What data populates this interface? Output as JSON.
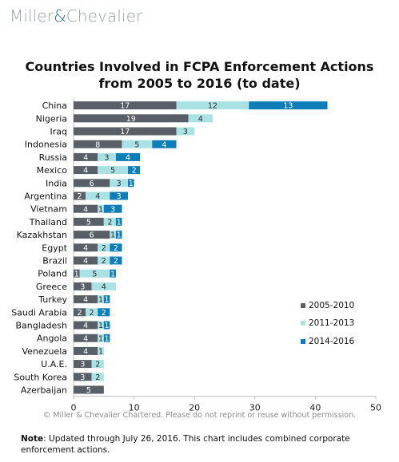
{
  "header": {
    "brand_left": "Miller",
    "brand_amp": "&",
    "brand_right": "Chevalier"
  },
  "footer": {
    "copyright": "© Miller & Chevalier Chartered. Please do not reprint or reuse without permission.",
    "note_label": "Note",
    "note_text": ": Updated through July 26, 2016. This chart includes combined corporate enforcement actions."
  },
  "chart_data": {
    "type": "bar",
    "orientation": "horizontal",
    "stacked": true,
    "title_line1": "Countries Involved in FCPA Enforcement Actions",
    "title_line2": "from 2005 to 2016 (to date)",
    "categories": [
      "China",
      "Nigeria",
      "Iraq",
      "Indonesia",
      "Russia",
      "Mexico",
      "India",
      "Argentina",
      "Vietnam",
      "Thailand",
      "Kazakhstan",
      "Egypt",
      "Brazil",
      "Poland",
      "Greece",
      "Turkey",
      "Saudi Arabia",
      "Bangladesh",
      "Angola",
      "Venezuela",
      "U.A.E.",
      "South Korea",
      "Azerbaijan"
    ],
    "series": [
      {
        "name": "2005-2010",
        "color": "#595f66",
        "values": [
          17,
          19,
          17,
          8,
          4,
          4,
          6,
          2,
          4,
          5,
          6,
          4,
          4,
          1,
          3,
          4,
          2,
          4,
          4,
          4,
          3,
          3,
          5
        ]
      },
      {
        "name": "2011-2013",
        "color": "#a9e1e4",
        "values": [
          12,
          4,
          3,
          5,
          3,
          5,
          3,
          4,
          1,
          2,
          1,
          2,
          2,
          5,
          4,
          1,
          2,
          1,
          1,
          1,
          2,
          2,
          0
        ]
      },
      {
        "name": "2014-2016",
        "color": "#0e7db8",
        "values": [
          13,
          0,
          0,
          4,
          4,
          2,
          1,
          3,
          3,
          1,
          1,
          2,
          2,
          1,
          0,
          1,
          2,
          1,
          1,
          0,
          0,
          0,
          0
        ]
      }
    ],
    "xlim": [
      0,
      50
    ],
    "xticks": [
      0,
      10,
      20,
      30,
      40,
      50
    ],
    "legend_position": "right",
    "grid": false
  }
}
